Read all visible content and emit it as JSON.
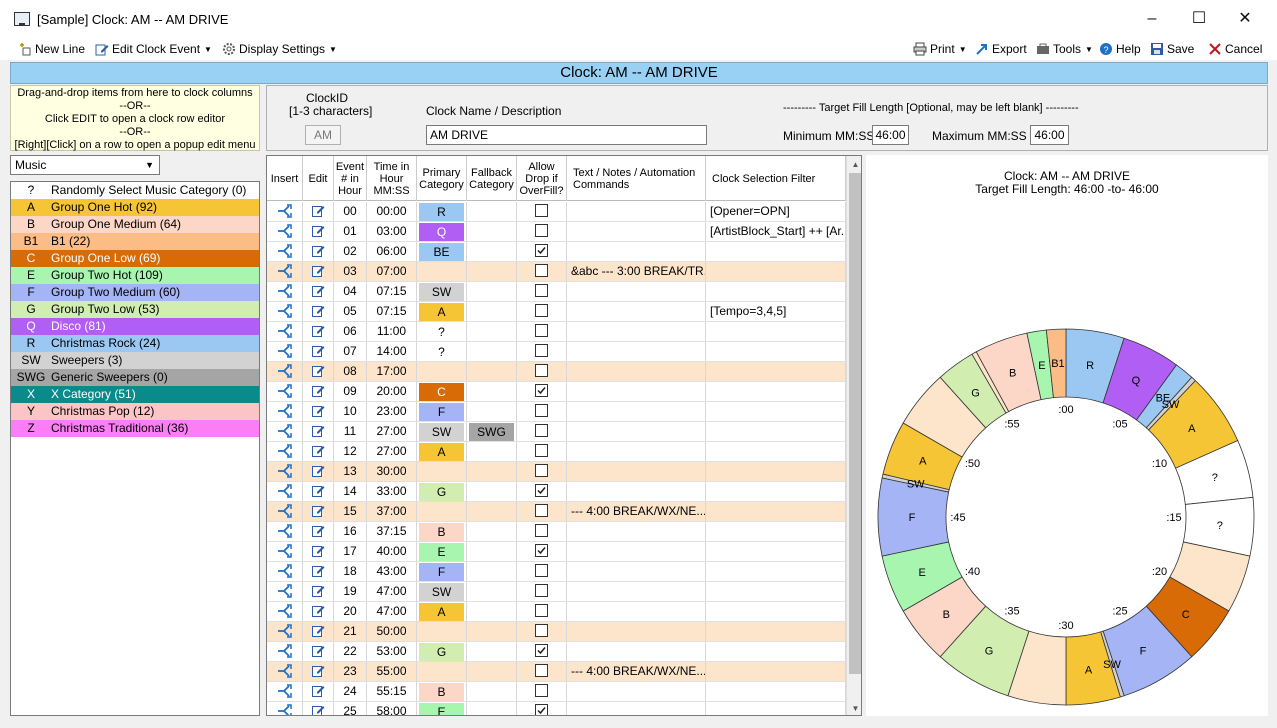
{
  "window": {
    "title": "[Sample] Clock: AM -- AM DRIVE"
  },
  "toolbar": {
    "new_line": "New Line",
    "edit_clock_event": "Edit Clock Event",
    "display_settings": "Display Settings",
    "print": "Print",
    "export": "Export",
    "tools": "Tools",
    "help": "Help",
    "save": "Save",
    "cancel": "Cancel"
  },
  "header": {
    "title": "Clock: AM -- AM DRIVE"
  },
  "instructions": {
    "line1": "Drag-and-drop items from here to clock columns",
    "line2": "--OR--",
    "line3": "Click EDIT to open a clock row editor",
    "line4": "--OR--",
    "line5": "[Right][Click] on a row to open a popup edit menu"
  },
  "clockinfo": {
    "clockid_label": "ClockID",
    "clockid_sub": "[1-3 characters]",
    "clockid_value": "AM",
    "name_label": "Clock Name / Description",
    "name_value": "AM DRIVE",
    "fill_label": "---------  Target Fill Length [Optional, may be left blank] ---------",
    "min_label": "Minimum MM:SS",
    "min_value": "46:00",
    "max_label": "Maximum MM:SS",
    "max_value": "46:00"
  },
  "category_filter": {
    "selected": "Music"
  },
  "categories": [
    {
      "code": "?",
      "name": "Randomly Select Music Category (0)",
      "color": "#ffffff"
    },
    {
      "code": "A",
      "name": "Group One Hot (92)",
      "color": "#f5c535"
    },
    {
      "code": "B",
      "name": "Group One Medium (64)",
      "color": "#fcd6c6"
    },
    {
      "code": "B1",
      "name": "B1 (22)",
      "color": "#fbbd85"
    },
    {
      "code": "C",
      "name": "Group One Low (69)",
      "color": "#d96b06",
      "text": "#ffffff"
    },
    {
      "code": "E",
      "name": "Group Two Hot (109)",
      "color": "#a8f5b0"
    },
    {
      "code": "F",
      "name": "Group Two Medium (60)",
      "color": "#a5b4f5"
    },
    {
      "code": "G",
      "name": "Group Two Low (53)",
      "color": "#d1eeb0"
    },
    {
      "code": "Q",
      "name": "Disco (81)",
      "color": "#b15ef5",
      "text": "#ffffff"
    },
    {
      "code": "R",
      "name": "Christmas Rock (24)",
      "color": "#9bc8f2"
    },
    {
      "code": "SW",
      "name": "Sweepers (3)",
      "color": "#d2d2d2"
    },
    {
      "code": "SWG",
      "name": "Generic Sweepers (0)",
      "color": "#a5a5a5"
    },
    {
      "code": "X",
      "name": "X Category (51)",
      "color": "#0a8a8a",
      "text": "#ffffff"
    },
    {
      "code": "Y",
      "name": "Christmas Pop (12)",
      "color": "#fcc5c5"
    },
    {
      "code": "Z",
      "name": "Christmas Traditional (36)",
      "color": "#fb7ef5"
    }
  ],
  "grid": {
    "headers": {
      "insert": "Insert",
      "edit": "Edit",
      "event": "Event # in Hour",
      "time": "Time in Hour MM:SS",
      "primary": "Primary Category",
      "fallback": "Fallback Category",
      "allow": "Allow Drop if OverFill?",
      "text": "Text / Notes / Automation Commands",
      "filter": "Clock Selection Filter"
    },
    "rows": [
      {
        "ev": "00",
        "time": "00:00",
        "primary": "R",
        "pc": "#9bc8f2",
        "fallback": "",
        "fc": "",
        "chk": false,
        "text": "",
        "filter": "[Opener=OPN]",
        "row": ""
      },
      {
        "ev": "01",
        "time": "03:00",
        "primary": "Q",
        "pc": "#b15ef5",
        "pt": "#ffffff",
        "fallback": "",
        "fc": "",
        "chk": false,
        "text": "",
        "filter": "[ArtistBlock_Start]  ++  [Ar...",
        "row": ""
      },
      {
        "ev": "02",
        "time": "06:00",
        "primary": "BE",
        "pc": "#9bc8f2",
        "fallback": "",
        "fc": "",
        "chk": true,
        "text": "",
        "filter": "",
        "row": ""
      },
      {
        "ev": "03",
        "time": "07:00",
        "primary": "",
        "pc": "",
        "fallback": "",
        "fc": "",
        "chk": false,
        "text": "&abc --- 3:00 BREAK/TR...",
        "filter": "",
        "row": "#fde5cc"
      },
      {
        "ev": "04",
        "time": "07:15",
        "primary": "SW",
        "pc": "#d2d2d2",
        "fallback": "",
        "fc": "",
        "chk": false,
        "text": "",
        "filter": "",
        "row": ""
      },
      {
        "ev": "05",
        "time": "07:15",
        "primary": "A",
        "pc": "#f5c535",
        "fallback": "",
        "fc": "",
        "chk": false,
        "text": "",
        "filter": "[Tempo=3,4,5]",
        "row": ""
      },
      {
        "ev": "06",
        "time": "11:00",
        "primary": "?",
        "pc": "",
        "fallback": "",
        "fc": "",
        "chk": false,
        "text": "",
        "filter": "",
        "row": ""
      },
      {
        "ev": "07",
        "time": "14:00",
        "primary": "?",
        "pc": "",
        "fallback": "",
        "fc": "",
        "chk": false,
        "text": "",
        "filter": "",
        "row": ""
      },
      {
        "ev": "08",
        "time": "17:00",
        "primary": "",
        "pc": "",
        "fallback": "",
        "fc": "",
        "chk": false,
        "text": "",
        "filter": "",
        "row": "#fde5cc"
      },
      {
        "ev": "09",
        "time": "20:00",
        "primary": "C",
        "pc": "#d96b06",
        "pt": "#ffffff",
        "fallback": "",
        "fc": "",
        "chk": true,
        "text": "",
        "filter": "",
        "row": ""
      },
      {
        "ev": "10",
        "time": "23:00",
        "primary": "F",
        "pc": "#a5b4f5",
        "fallback": "",
        "fc": "",
        "chk": false,
        "text": "",
        "filter": "",
        "row": ""
      },
      {
        "ev": "11",
        "time": "27:00",
        "primary": "SW",
        "pc": "#d2d2d2",
        "fallback": "SWG",
        "fc": "#a5a5a5",
        "chk": false,
        "text": "",
        "filter": "",
        "row": ""
      },
      {
        "ev": "12",
        "time": "27:00",
        "primary": "A",
        "pc": "#f5c535",
        "fallback": "",
        "fc": "",
        "chk": false,
        "text": "",
        "filter": "",
        "row": ""
      },
      {
        "ev": "13",
        "time": "30:00",
        "primary": "",
        "pc": "",
        "fallback": "",
        "fc": "",
        "chk": false,
        "text": "",
        "filter": "",
        "row": "#fde5cc"
      },
      {
        "ev": "14",
        "time": "33:00",
        "primary": "G",
        "pc": "#d1eeb0",
        "fallback": "",
        "fc": "",
        "chk": true,
        "text": "",
        "filter": "",
        "row": ""
      },
      {
        "ev": "15",
        "time": "37:00",
        "primary": "",
        "pc": "",
        "fallback": "",
        "fc": "",
        "chk": false,
        "text": "--- 4:00 BREAK/WX/NE...",
        "filter": "",
        "row": "#fde5cc"
      },
      {
        "ev": "16",
        "time": "37:15",
        "primary": "B",
        "pc": "#fcd6c6",
        "fallback": "",
        "fc": "",
        "chk": false,
        "text": "",
        "filter": "",
        "row": ""
      },
      {
        "ev": "17",
        "time": "40:00",
        "primary": "E",
        "pc": "#a8f5b0",
        "fallback": "",
        "fc": "",
        "chk": true,
        "text": "",
        "filter": "",
        "row": ""
      },
      {
        "ev": "18",
        "time": "43:00",
        "primary": "F",
        "pc": "#a5b4f5",
        "fallback": "",
        "fc": "",
        "chk": false,
        "text": "",
        "filter": "",
        "row": ""
      },
      {
        "ev": "19",
        "time": "47:00",
        "primary": "SW",
        "pc": "#d2d2d2",
        "fallback": "",
        "fc": "",
        "chk": false,
        "text": "",
        "filter": "",
        "row": ""
      },
      {
        "ev": "20",
        "time": "47:00",
        "primary": "A",
        "pc": "#f5c535",
        "fallback": "",
        "fc": "",
        "chk": false,
        "text": "",
        "filter": "",
        "row": ""
      },
      {
        "ev": "21",
        "time": "50:00",
        "primary": "",
        "pc": "",
        "fallback": "",
        "fc": "",
        "chk": false,
        "text": "",
        "filter": "",
        "row": "#fde5cc"
      },
      {
        "ev": "22",
        "time": "53:00",
        "primary": "G",
        "pc": "#d1eeb0",
        "fallback": "",
        "fc": "",
        "chk": true,
        "text": "",
        "filter": "",
        "row": ""
      },
      {
        "ev": "23",
        "time": "55:00",
        "primary": "",
        "pc": "",
        "fallback": "",
        "fc": "",
        "chk": false,
        "text": "--- 4:00 BREAK/WX/NE...",
        "filter": "",
        "row": "#fde5cc"
      },
      {
        "ev": "24",
        "time": "55:15",
        "primary": "B",
        "pc": "#fcd6c6",
        "fallback": "",
        "fc": "",
        "chk": false,
        "text": "",
        "filter": "",
        "row": ""
      },
      {
        "ev": "25",
        "time": "58:00",
        "primary": "E",
        "pc": "#a8f5b0",
        "fallback": "",
        "fc": "",
        "chk": true,
        "text": "",
        "filter": "",
        "row": ""
      }
    ]
  },
  "clockchart": {
    "title": "Clock: AM -- AM DRIVE",
    "subtitle": "Target Fill Length: 46:00 -to- 46:00",
    "minute_labels": [
      ":00",
      ":05",
      ":10",
      ":15",
      ":20",
      ":25",
      ":30",
      ":35",
      ":40",
      ":45",
      ":50",
      ":55"
    ],
    "segments": [
      {
        "label": "R",
        "start": 0,
        "end": 3,
        "color": "#9bc8f2"
      },
      {
        "label": "Q",
        "start": 3,
        "end": 6,
        "color": "#b15ef5"
      },
      {
        "label": "BE",
        "start": 6,
        "end": 7,
        "color": "#9bc8f2"
      },
      {
        "label": "SW",
        "start": 7,
        "end": 7.25,
        "color": "#d2d2d2"
      },
      {
        "label": "A",
        "start": 7.25,
        "end": 11,
        "color": "#f5c535"
      },
      {
        "label": "?",
        "start": 11,
        "end": 14,
        "color": "#ffffff"
      },
      {
        "label": "?",
        "start": 14,
        "end": 17,
        "color": "#ffffff"
      },
      {
        "label": "",
        "start": 17,
        "end": 20,
        "color": "#fde5cc"
      },
      {
        "label": "C",
        "start": 20,
        "end": 23,
        "color": "#d96b06"
      },
      {
        "label": "F",
        "start": 23,
        "end": 27,
        "color": "#a5b4f5"
      },
      {
        "label": "SW",
        "start": 27,
        "end": 27.2,
        "color": "#d2d2d2"
      },
      {
        "label": "A",
        "start": 27.2,
        "end": 30,
        "color": "#f5c535"
      },
      {
        "label": "",
        "start": 30,
        "end": 33,
        "color": "#fde5cc"
      },
      {
        "label": "G",
        "start": 33,
        "end": 37,
        "color": "#d1eeb0"
      },
      {
        "label": "B",
        "start": 37,
        "end": 40,
        "color": "#fcd6c6"
      },
      {
        "label": "E",
        "start": 40,
        "end": 43,
        "color": "#a8f5b0"
      },
      {
        "label": "F",
        "start": 43,
        "end": 47,
        "color": "#a5b4f5"
      },
      {
        "label": "SW",
        "start": 47,
        "end": 47.2,
        "color": "#d2d2d2"
      },
      {
        "label": "A",
        "start": 47.2,
        "end": 50,
        "color": "#f5c535"
      },
      {
        "label": "",
        "start": 50,
        "end": 53,
        "color": "#fde5cc"
      },
      {
        "label": "G",
        "start": 53,
        "end": 55,
        "color": "#d1eeb0"
      },
      {
        "label": "",
        "start": 55,
        "end": 55.25,
        "color": "#fde5cc"
      },
      {
        "label": "B",
        "start": 55.25,
        "end": 58,
        "color": "#fcd6c6"
      },
      {
        "label": "E",
        "start": 58,
        "end": 59,
        "color": "#a8f5b0"
      },
      {
        "label": "B1",
        "start": 59,
        "end": 60,
        "color": "#fbbd85"
      }
    ]
  }
}
